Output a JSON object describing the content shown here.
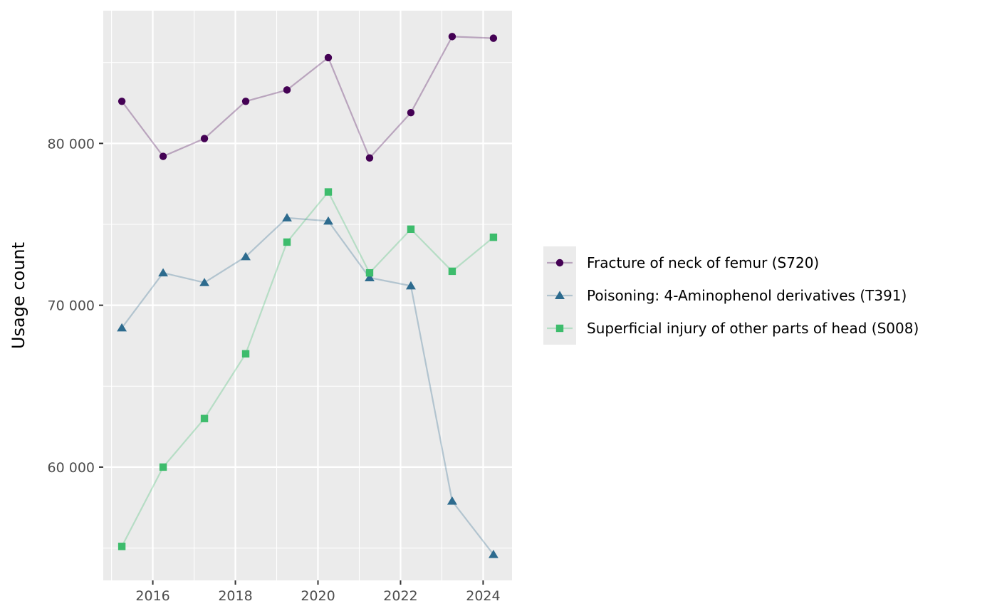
{
  "chart_data": {
    "type": "line",
    "title": "",
    "xlabel": "",
    "ylabel": "Usage count",
    "x": [
      2015.25,
      2016.25,
      2017.25,
      2018.25,
      2019.25,
      2020.25,
      2021.25,
      2022.25,
      2023.25,
      2024.25
    ],
    "xlim": [
      2014.8,
      2024.7
    ],
    "ylim": [
      53000,
      88200
    ],
    "x_ticks": [
      2016,
      2018,
      2020,
      2022,
      2024
    ],
    "x_tick_labels": [
      "2016",
      "2018",
      "2020",
      "2022",
      "2024"
    ],
    "y_ticks": [
      60000,
      70000,
      80000
    ],
    "y_tick_labels": [
      "60 000",
      "70 000",
      "80 000"
    ],
    "grid": true,
    "legend_position": "right",
    "series": [
      {
        "name": "Fracture of neck of femur (S720)",
        "marker": "circle",
        "color": "#440154",
        "values": [
          82600,
          79200,
          80300,
          82600,
          83300,
          85300,
          79100,
          81900,
          86600,
          86500
        ]
      },
      {
        "name": "Poisoning: 4-Aminophenol derivatives (T391)",
        "marker": "triangle",
        "color": "#2d6b8e",
        "values": [
          68600,
          72000,
          71400,
          73000,
          75400,
          75200,
          71700,
          71200,
          57900,
          54600
        ]
      },
      {
        "name": "Superficial injury of other parts of head (S008)",
        "marker": "square",
        "color": "#3dbc6c",
        "values": [
          55100,
          60000,
          63000,
          67000,
          73900,
          77000,
          72000,
          74700,
          72100,
          74200
        ]
      }
    ]
  }
}
